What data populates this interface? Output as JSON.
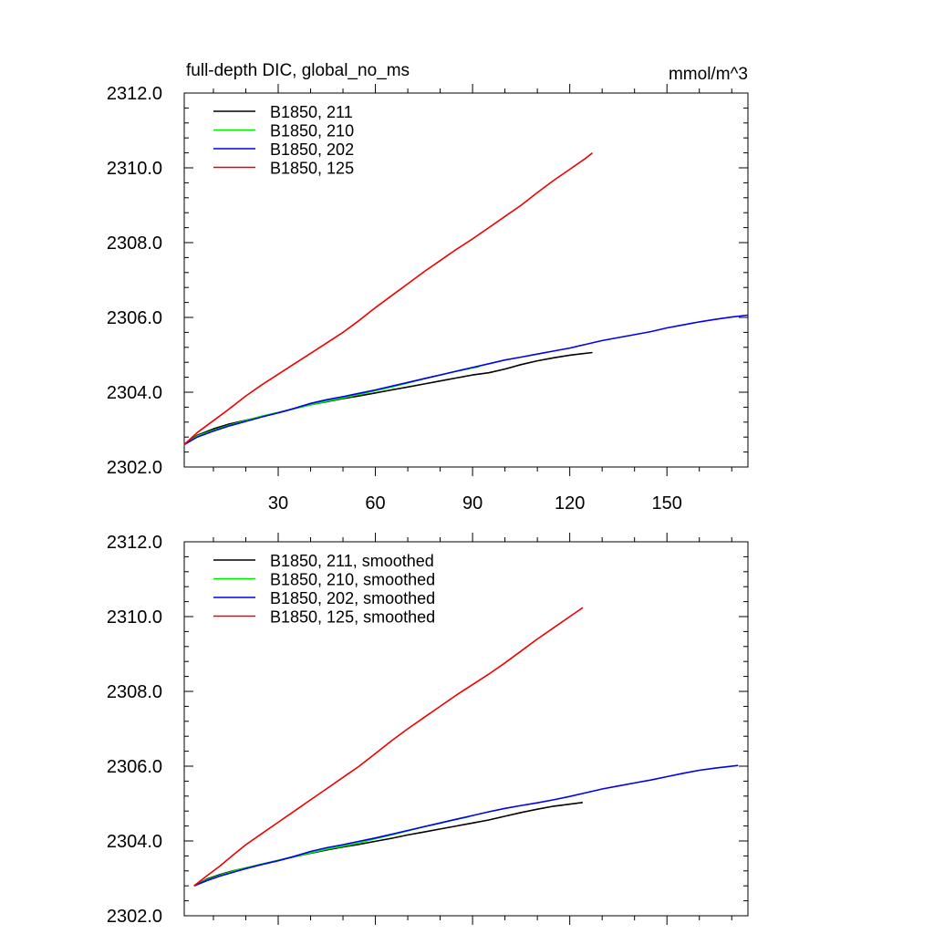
{
  "figure": {
    "title": "full-depth DIC, global_no_ms",
    "units": "mmol/m^3"
  },
  "chart_data": [
    {
      "type": "line",
      "title": "full-depth DIC, global_no_ms",
      "units_label": "mmol/m^3",
      "xlabel": "",
      "ylabel": "",
      "xlim": [
        1,
        175
      ],
      "ylim": [
        2302.0,
        2312.0
      ],
      "yticks": [
        2302.0,
        2304.0,
        2306.0,
        2308.0,
        2310.0,
        2312.0
      ],
      "ytick_labels": [
        "2302.0",
        "2304.0",
        "2306.0",
        "2308.0",
        "2310.0",
        "2312.0"
      ],
      "xticks": [
        30,
        60,
        90,
        120,
        150
      ],
      "xtick_labels": [
        "30",
        "60",
        "90",
        "120",
        "150"
      ],
      "legend_position": "top-left",
      "series": [
        {
          "name": "B1850, 211",
          "color": "#000000",
          "x": [
            1,
            5,
            10,
            15,
            20,
            25,
            30,
            35,
            40,
            45,
            50,
            55,
            60,
            65,
            70,
            75,
            80,
            85,
            90,
            95,
            100,
            105,
            110,
            115,
            120,
            127
          ],
          "y": [
            2302.6,
            2302.85,
            2303.02,
            2303.15,
            2303.25,
            2303.35,
            2303.45,
            2303.56,
            2303.66,
            2303.75,
            2303.83,
            2303.9,
            2303.98,
            2304.06,
            2304.14,
            2304.22,
            2304.3,
            2304.38,
            2304.46,
            2304.52,
            2304.62,
            2304.74,
            2304.84,
            2304.92,
            2304.99,
            2305.06
          ]
        },
        {
          "name": "B1850, 210",
          "color": "#00ee00",
          "x": [
            1,
            5,
            10,
            15,
            20,
            25,
            30,
            35,
            40,
            45,
            50,
            55,
            60,
            65,
            70,
            75,
            80,
            85,
            90,
            92
          ],
          "y": [
            2302.6,
            2302.83,
            2302.98,
            2303.12,
            2303.24,
            2303.36,
            2303.46,
            2303.56,
            2303.66,
            2303.76,
            2303.85,
            2303.94,
            2304.04,
            2304.14,
            2304.25,
            2304.36,
            2304.46,
            2304.56,
            2304.65,
            2304.68
          ]
        },
        {
          "name": "B1850, 202",
          "color": "#0000ee",
          "x": [
            1,
            5,
            10,
            15,
            20,
            25,
            30,
            35,
            40,
            45,
            50,
            55,
            60,
            65,
            70,
            75,
            80,
            85,
            90,
            95,
            100,
            105,
            110,
            115,
            120,
            125,
            130,
            135,
            140,
            145,
            150,
            155,
            160,
            165,
            170,
            175
          ],
          "y": [
            2302.6,
            2302.8,
            2302.96,
            2303.1,
            2303.22,
            2303.34,
            2303.45,
            2303.57,
            2303.7,
            2303.8,
            2303.88,
            2303.97,
            2304.06,
            2304.16,
            2304.26,
            2304.36,
            2304.46,
            2304.56,
            2304.66,
            2304.76,
            2304.86,
            2304.94,
            2305.02,
            2305.1,
            2305.18,
            2305.28,
            2305.38,
            2305.46,
            2305.54,
            2305.62,
            2305.72,
            2305.8,
            2305.88,
            2305.95,
            2306.01,
            2306.06
          ]
        },
        {
          "name": "B1850, 125",
          "color": "#ee0000",
          "x": [
            1,
            5,
            10,
            15,
            20,
            25,
            30,
            35,
            40,
            45,
            50,
            55,
            60,
            65,
            70,
            75,
            80,
            85,
            90,
            95,
            100,
            105,
            110,
            115,
            120,
            125,
            127
          ],
          "y": [
            2302.6,
            2302.92,
            2303.24,
            2303.56,
            2303.9,
            2304.2,
            2304.48,
            2304.76,
            2305.04,
            2305.32,
            2305.6,
            2305.92,
            2306.26,
            2306.58,
            2306.9,
            2307.22,
            2307.52,
            2307.82,
            2308.1,
            2308.4,
            2308.7,
            2309.0,
            2309.34,
            2309.66,
            2309.96,
            2310.26,
            2310.4
          ]
        }
      ]
    },
    {
      "type": "line",
      "title": "",
      "xlabel": "",
      "ylabel": "",
      "xlim": [
        1,
        175
      ],
      "ylim": [
        2302.0,
        2312.0
      ],
      "yticks": [
        2302.0,
        2304.0,
        2306.0,
        2308.0,
        2310.0,
        2312.0
      ],
      "ytick_labels": [
        "2302.0",
        "2304.0",
        "2306.0",
        "2308.0",
        "2310.0",
        "2312.0"
      ],
      "xticks": [
        30,
        60,
        90,
        120,
        150
      ],
      "xtick_labels": [],
      "legend_position": "top-left",
      "series": [
        {
          "name": "B1850, 211, smoothed",
          "color": "#000000",
          "x": [
            4,
            8,
            12,
            16,
            20,
            25,
            30,
            35,
            40,
            45,
            50,
            55,
            60,
            65,
            70,
            75,
            80,
            85,
            90,
            95,
            100,
            105,
            110,
            115,
            124
          ],
          "y": [
            2302.8,
            2302.98,
            2303.1,
            2303.2,
            2303.28,
            2303.38,
            2303.48,
            2303.58,
            2303.67,
            2303.76,
            2303.84,
            2303.91,
            2303.99,
            2304.07,
            2304.16,
            2304.24,
            2304.32,
            2304.4,
            2304.48,
            2304.56,
            2304.66,
            2304.76,
            2304.85,
            2304.93,
            2305.03
          ]
        },
        {
          "name": "B1850, 210, smoothed",
          "color": "#00ee00",
          "x": [
            4,
            8,
            12,
            16,
            20,
            25,
            30,
            35,
            40,
            45,
            50,
            55,
            60,
            65,
            70,
            75,
            80,
            85,
            89
          ],
          "y": [
            2302.8,
            2302.96,
            2303.08,
            2303.19,
            2303.28,
            2303.38,
            2303.48,
            2303.58,
            2303.68,
            2303.78,
            2303.86,
            2303.95,
            2304.06,
            2304.16,
            2304.27,
            2304.38,
            2304.48,
            2304.58,
            2304.65
          ]
        },
        {
          "name": "B1850, 202, smoothed",
          "color": "#0000ee",
          "x": [
            4,
            8,
            12,
            16,
            20,
            25,
            30,
            35,
            40,
            45,
            50,
            55,
            60,
            65,
            70,
            75,
            80,
            85,
            90,
            95,
            100,
            105,
            110,
            115,
            120,
            125,
            130,
            135,
            140,
            145,
            150,
            155,
            160,
            165,
            172
          ],
          "y": [
            2302.8,
            2302.94,
            2303.06,
            2303.16,
            2303.26,
            2303.37,
            2303.47,
            2303.59,
            2303.72,
            2303.82,
            2303.9,
            2303.99,
            2304.08,
            2304.18,
            2304.28,
            2304.38,
            2304.48,
            2304.58,
            2304.68,
            2304.78,
            2304.87,
            2304.95,
            2305.02,
            2305.1,
            2305.19,
            2305.29,
            2305.39,
            2305.47,
            2305.55,
            2305.63,
            2305.72,
            2305.81,
            2305.89,
            2305.95,
            2306.02
          ]
        },
        {
          "name": "B1850, 125, smoothed",
          "color": "#ee0000",
          "x": [
            4,
            8,
            12,
            16,
            20,
            25,
            30,
            35,
            40,
            45,
            50,
            55,
            60,
            65,
            70,
            75,
            80,
            85,
            90,
            95,
            100,
            105,
            110,
            115,
            120,
            124
          ],
          "y": [
            2302.8,
            2303.07,
            2303.33,
            2303.62,
            2303.9,
            2304.2,
            2304.5,
            2304.8,
            2305.1,
            2305.4,
            2305.7,
            2306.0,
            2306.34,
            2306.68,
            2307.0,
            2307.3,
            2307.6,
            2307.9,
            2308.18,
            2308.46,
            2308.76,
            2309.08,
            2309.4,
            2309.7,
            2310.0,
            2310.24
          ]
        }
      ]
    }
  ]
}
